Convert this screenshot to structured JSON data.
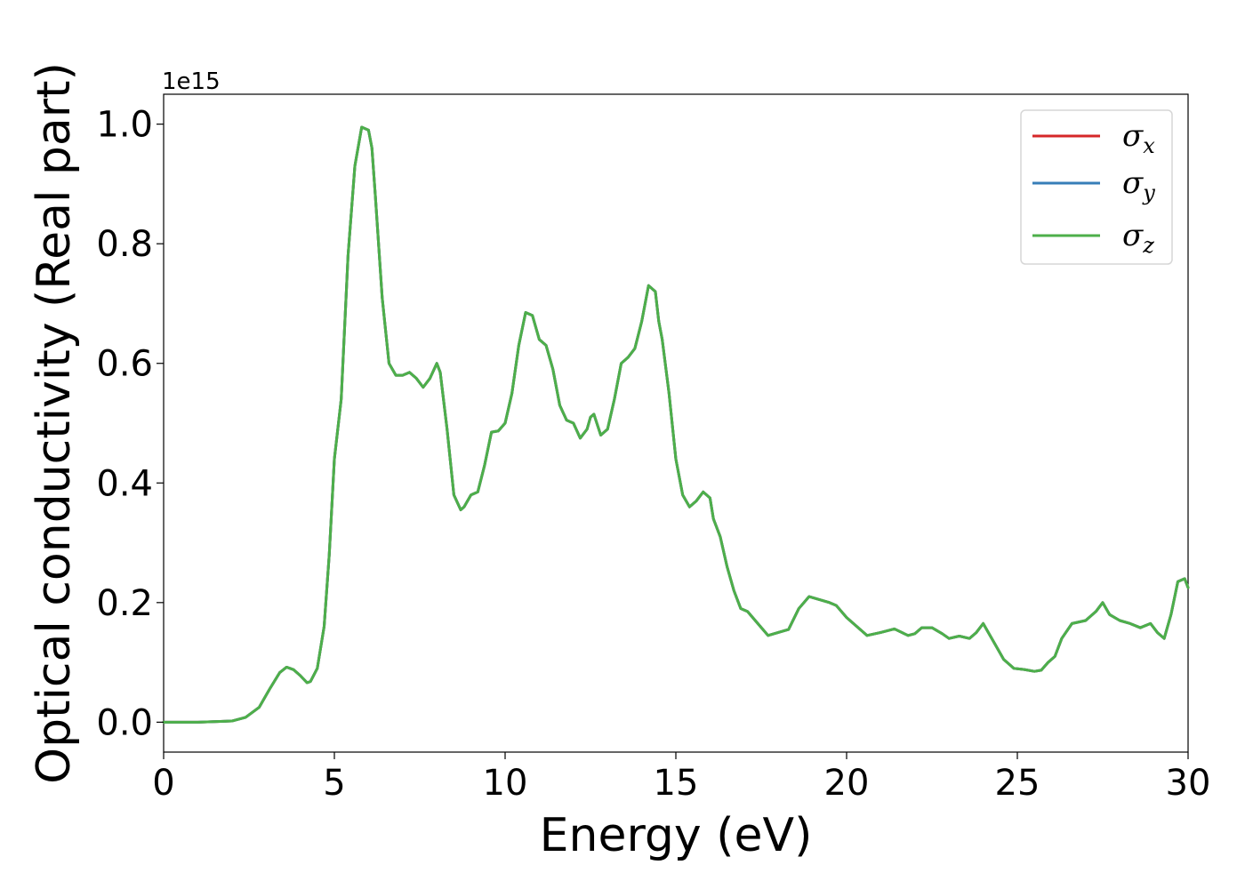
{
  "chart_data": {
    "type": "line",
    "title": "",
    "xlabel": "Energy (eV)",
    "ylabel": "Optical conductivity (Real part)",
    "y_offset_label": "1e15",
    "xlim": [
      0,
      30
    ],
    "ylim": [
      -0.05,
      1.05
    ],
    "x_ticks": [
      0,
      5,
      10,
      15,
      20,
      25,
      30
    ],
    "x_tick_labels": [
      "0",
      "5",
      "10",
      "15",
      "20",
      "25",
      "30"
    ],
    "y_ticks": [
      0.0,
      0.2,
      0.4,
      0.6,
      0.8,
      1.0
    ],
    "y_tick_labels": [
      "0.0",
      "0.2",
      "0.4",
      "0.6",
      "0.8",
      "1.0"
    ],
    "grid": false,
    "legend_position": "top-right",
    "x": [
      0,
      1,
      2,
      2.4,
      2.8,
      3.1,
      3.4,
      3.6,
      3.8,
      4.0,
      4.2,
      4.3,
      4.5,
      4.7,
      4.85,
      5.0,
      5.2,
      5.4,
      5.6,
      5.8,
      6.0,
      6.1,
      6.2,
      6.4,
      6.6,
      6.8,
      7.0,
      7.2,
      7.4,
      7.6,
      7.8,
      8.0,
      8.1,
      8.3,
      8.5,
      8.7,
      8.8,
      9.0,
      9.2,
      9.4,
      9.6,
      9.8,
      10.0,
      10.2,
      10.4,
      10.6,
      10.8,
      10.9,
      11.0,
      11.2,
      11.4,
      11.6,
      11.8,
      12.0,
      12.2,
      12.4,
      12.5,
      12.6,
      12.8,
      13.0,
      13.2,
      13.4,
      13.6,
      13.8,
      14.0,
      14.2,
      14.4,
      14.5,
      14.6,
      14.8,
      15.0,
      15.2,
      15.4,
      15.6,
      15.8,
      16.0,
      16.1,
      16.3,
      16.5,
      16.7,
      16.9,
      17.1,
      17.4,
      17.7,
      18.0,
      18.3,
      18.6,
      18.9,
      19.2,
      19.5,
      19.7,
      20.0,
      20.3,
      20.6,
      21.0,
      21.4,
      21.8,
      22.0,
      22.2,
      22.5,
      22.8,
      23.0,
      23.3,
      23.6,
      23.8,
      24.0,
      24.3,
      24.6,
      24.9,
      25.2,
      25.5,
      25.7,
      25.9,
      26.1,
      26.3,
      26.6,
      27.0,
      27.3,
      27.5,
      27.7,
      28.0,
      28.3,
      28.6,
      28.9,
      29.1,
      29.3,
      29.5,
      29.7,
      29.9,
      30.0
    ],
    "series": [
      {
        "name": "σx",
        "label_symbol": "σ",
        "label_sub": "x",
        "color": "#d62728",
        "values": [
          0.0,
          0.0,
          0.002,
          0.008,
          0.025,
          0.055,
          0.083,
          0.092,
          0.088,
          0.078,
          0.066,
          0.068,
          0.09,
          0.16,
          0.28,
          0.44,
          0.54,
          0.78,
          0.93,
          0.995,
          0.99,
          0.96,
          0.88,
          0.71,
          0.6,
          0.58,
          0.58,
          0.585,
          0.575,
          0.56,
          0.575,
          0.6,
          0.585,
          0.49,
          0.38,
          0.355,
          0.36,
          0.38,
          0.385,
          0.43,
          0.485,
          0.487,
          0.5,
          0.55,
          0.63,
          0.685,
          0.68,
          0.66,
          0.64,
          0.63,
          0.59,
          0.53,
          0.505,
          0.5,
          0.475,
          0.49,
          0.51,
          0.515,
          0.48,
          0.49,
          0.54,
          0.6,
          0.61,
          0.625,
          0.67,
          0.73,
          0.72,
          0.67,
          0.64,
          0.55,
          0.44,
          0.38,
          0.36,
          0.37,
          0.385,
          0.375,
          0.34,
          0.31,
          0.26,
          0.22,
          0.19,
          0.185,
          0.165,
          0.145,
          0.15,
          0.155,
          0.19,
          0.21,
          0.205,
          0.2,
          0.195,
          0.175,
          0.16,
          0.145,
          0.15,
          0.156,
          0.145,
          0.148,
          0.158,
          0.158,
          0.148,
          0.14,
          0.144,
          0.14,
          0.15,
          0.165,
          0.135,
          0.105,
          0.09,
          0.088,
          0.085,
          0.087,
          0.1,
          0.11,
          0.14,
          0.165,
          0.17,
          0.185,
          0.2,
          0.18,
          0.17,
          0.165,
          0.158,
          0.165,
          0.15,
          0.14,
          0.18,
          0.235,
          0.24,
          0.225
        ]
      },
      {
        "name": "σy",
        "label_symbol": "σ",
        "label_sub": "y",
        "color": "#377eb8",
        "values": [
          0.0,
          0.0,
          0.002,
          0.008,
          0.025,
          0.055,
          0.083,
          0.092,
          0.088,
          0.078,
          0.066,
          0.068,
          0.09,
          0.16,
          0.28,
          0.44,
          0.54,
          0.78,
          0.93,
          0.995,
          0.99,
          0.96,
          0.88,
          0.71,
          0.6,
          0.58,
          0.58,
          0.585,
          0.575,
          0.56,
          0.575,
          0.6,
          0.585,
          0.49,
          0.38,
          0.355,
          0.36,
          0.38,
          0.385,
          0.43,
          0.485,
          0.487,
          0.5,
          0.55,
          0.63,
          0.685,
          0.68,
          0.66,
          0.64,
          0.63,
          0.59,
          0.53,
          0.505,
          0.5,
          0.475,
          0.49,
          0.51,
          0.515,
          0.48,
          0.49,
          0.54,
          0.6,
          0.61,
          0.625,
          0.67,
          0.73,
          0.72,
          0.67,
          0.64,
          0.55,
          0.44,
          0.38,
          0.36,
          0.37,
          0.385,
          0.375,
          0.34,
          0.31,
          0.26,
          0.22,
          0.19,
          0.185,
          0.165,
          0.145,
          0.15,
          0.155,
          0.19,
          0.21,
          0.205,
          0.2,
          0.195,
          0.175,
          0.16,
          0.145,
          0.15,
          0.156,
          0.145,
          0.148,
          0.158,
          0.158,
          0.148,
          0.14,
          0.144,
          0.14,
          0.15,
          0.165,
          0.135,
          0.105,
          0.09,
          0.088,
          0.085,
          0.087,
          0.1,
          0.11,
          0.14,
          0.165,
          0.17,
          0.185,
          0.2,
          0.18,
          0.17,
          0.165,
          0.158,
          0.165,
          0.15,
          0.14,
          0.18,
          0.235,
          0.24,
          0.225
        ]
      },
      {
        "name": "σz",
        "label_symbol": "σ",
        "label_sub": "z",
        "color": "#4daf4a",
        "values": [
          0.0,
          0.0,
          0.002,
          0.008,
          0.025,
          0.055,
          0.083,
          0.092,
          0.088,
          0.078,
          0.066,
          0.068,
          0.09,
          0.16,
          0.28,
          0.44,
          0.54,
          0.78,
          0.93,
          0.995,
          0.99,
          0.96,
          0.88,
          0.71,
          0.6,
          0.58,
          0.58,
          0.585,
          0.575,
          0.56,
          0.575,
          0.6,
          0.585,
          0.49,
          0.38,
          0.355,
          0.36,
          0.38,
          0.385,
          0.43,
          0.485,
          0.487,
          0.5,
          0.55,
          0.63,
          0.685,
          0.68,
          0.66,
          0.64,
          0.63,
          0.59,
          0.53,
          0.505,
          0.5,
          0.475,
          0.49,
          0.51,
          0.515,
          0.48,
          0.49,
          0.54,
          0.6,
          0.61,
          0.625,
          0.67,
          0.73,
          0.72,
          0.67,
          0.64,
          0.55,
          0.44,
          0.38,
          0.36,
          0.37,
          0.385,
          0.375,
          0.34,
          0.31,
          0.26,
          0.22,
          0.19,
          0.185,
          0.165,
          0.145,
          0.15,
          0.155,
          0.19,
          0.21,
          0.205,
          0.2,
          0.195,
          0.175,
          0.16,
          0.145,
          0.15,
          0.156,
          0.145,
          0.148,
          0.158,
          0.158,
          0.148,
          0.14,
          0.144,
          0.14,
          0.15,
          0.165,
          0.135,
          0.105,
          0.09,
          0.088,
          0.085,
          0.087,
          0.1,
          0.11,
          0.14,
          0.165,
          0.17,
          0.185,
          0.2,
          0.18,
          0.17,
          0.165,
          0.158,
          0.165,
          0.15,
          0.14,
          0.18,
          0.235,
          0.24,
          0.225
        ]
      }
    ]
  }
}
